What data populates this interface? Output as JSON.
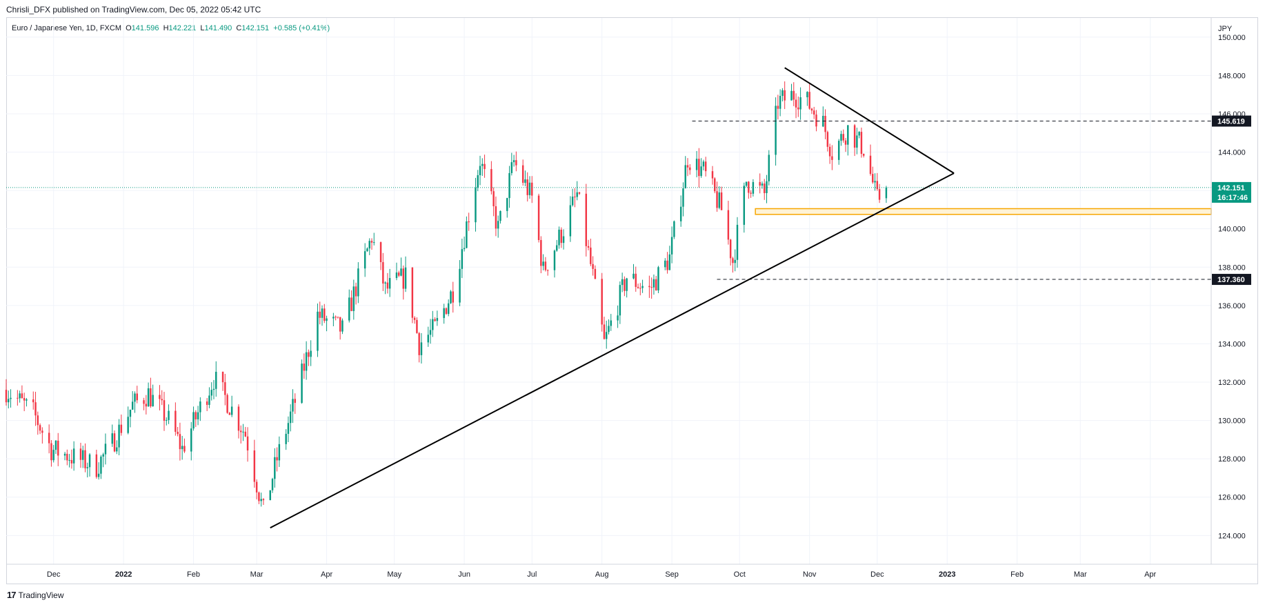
{
  "header": {
    "published": "Chrisli_DFX published on TradingView.com, Dec 05, 2022 05:42 UTC"
  },
  "symbol": {
    "name": "Euro / Japanese Yen, 1D, FXCM",
    "o_label": "O",
    "o": "141.596",
    "h_label": "H",
    "h": "142.221",
    "l_label": "L",
    "l": "141.490",
    "c_label": "C",
    "c": "142.151",
    "change": "+0.585 (+0.41%)"
  },
  "footer": {
    "brand": "TradingView",
    "logo": "17"
  },
  "colors": {
    "up": "#089981",
    "down": "#f23645",
    "accent_zone": "#f7a600",
    "last_price_line": "#089981"
  },
  "chart_data": {
    "type": "candlestick",
    "currency_label": "JPY",
    "ylim": [
      122.5,
      151.0
    ],
    "y_ticks": [
      124,
      126,
      128,
      130,
      132,
      134,
      136,
      138,
      140,
      142,
      144,
      146,
      148,
      150
    ],
    "y_tick_labels": [
      "124.000",
      "126.000",
      "128.000",
      "130.000",
      "132.000",
      "134.000",
      "136.000",
      "138.000",
      "140.000",
      "142.000",
      "144.000",
      "146.000",
      "148.000",
      "150.000"
    ],
    "x_range": [
      "2021-11-10",
      "2023-04-28"
    ],
    "x_ticks": [
      {
        "date": "2021-12-01",
        "label": "Dec",
        "bold": false
      },
      {
        "date": "2022-01-01",
        "label": "2022",
        "bold": true
      },
      {
        "date": "2022-02-01",
        "label": "Feb",
        "bold": false
      },
      {
        "date": "2022-03-01",
        "label": "Mar",
        "bold": false
      },
      {
        "date": "2022-04-01",
        "label": "Apr",
        "bold": false
      },
      {
        "date": "2022-05-01",
        "label": "May",
        "bold": false
      },
      {
        "date": "2022-06-01",
        "label": "Jun",
        "bold": false
      },
      {
        "date": "2022-07-01",
        "label": "Jul",
        "bold": false
      },
      {
        "date": "2022-08-01",
        "label": "Aug",
        "bold": false
      },
      {
        "date": "2022-09-01",
        "label": "Sep",
        "bold": false
      },
      {
        "date": "2022-10-01",
        "label": "Oct",
        "bold": false
      },
      {
        "date": "2022-11-01",
        "label": "Nov",
        "bold": false
      },
      {
        "date": "2022-12-01",
        "label": "Dec",
        "bold": false
      },
      {
        "date": "2023-01-01",
        "label": "2023",
        "bold": true
      },
      {
        "date": "2023-02-01",
        "label": "Feb",
        "bold": false
      },
      {
        "date": "2023-03-01",
        "label": "Mar",
        "bold": false
      },
      {
        "date": "2023-04-01",
        "label": "Apr",
        "bold": false
      }
    ],
    "price_path": [
      [
        "2021-11-10",
        131.6
      ],
      [
        "2021-11-22",
        130.4
      ],
      [
        "2021-11-30",
        128.5
      ],
      [
        "2021-12-07",
        128.2
      ],
      [
        "2021-12-20",
        127.6
      ],
      [
        "2021-12-27",
        128.8
      ],
      [
        "2022-01-05",
        130.8
      ],
      [
        "2022-01-12",
        131.4
      ],
      [
        "2022-01-21",
        130.0
      ],
      [
        "2022-01-27",
        128.5
      ],
      [
        "2022-02-03",
        130.4
      ],
      [
        "2022-02-10",
        132.2
      ],
      [
        "2022-02-17",
        130.8
      ],
      [
        "2022-02-24",
        129.3
      ],
      [
        "2022-03-04",
        125.2
      ],
      [
        "2022-03-10",
        128.0
      ],
      [
        "2022-03-18",
        131.0
      ],
      [
        "2022-03-28",
        135.5
      ],
      [
        "2022-04-08",
        134.7
      ],
      [
        "2022-04-21",
        139.6
      ],
      [
        "2022-04-27",
        136.8
      ],
      [
        "2022-05-06",
        137.5
      ],
      [
        "2022-05-12",
        134.0
      ],
      [
        "2022-05-19",
        134.8
      ],
      [
        "2022-05-27",
        136.8
      ],
      [
        "2022-06-08",
        143.6
      ],
      [
        "2022-06-16",
        140.0
      ],
      [
        "2022-06-23",
        143.5
      ],
      [
        "2022-07-01",
        141.6
      ],
      [
        "2022-07-06",
        137.8
      ],
      [
        "2022-07-15",
        140.0
      ],
      [
        "2022-07-21",
        141.8
      ],
      [
        "2022-07-28",
        137.5
      ],
      [
        "2022-08-02",
        134.0
      ],
      [
        "2022-08-12",
        137.5
      ],
      [
        "2022-08-22",
        136.8
      ],
      [
        "2022-08-31",
        138.5
      ],
      [
        "2022-09-08",
        143.7
      ],
      [
        "2022-09-15",
        143.0
      ],
      [
        "2022-09-23",
        141.0
      ],
      [
        "2022-09-28",
        138.3
      ],
      [
        "2022-10-04",
        142.5
      ],
      [
        "2022-10-12",
        141.8
      ],
      [
        "2022-10-18",
        146.6
      ],
      [
        "2022-10-25",
        147.0
      ],
      [
        "2022-10-31",
        146.6
      ],
      [
        "2022-11-07",
        145.5
      ],
      [
        "2022-11-11",
        144.0
      ],
      [
        "2022-11-18",
        145.2
      ],
      [
        "2022-11-25",
        144.2
      ],
      [
        "2022-12-01",
        141.5
      ],
      [
        "2022-12-05",
        142.15
      ]
    ],
    "horizontal_levels": [
      {
        "value": 145.619,
        "label": "145.619",
        "from": "2022-09-10",
        "style": "dashed"
      },
      {
        "value": 137.36,
        "label": "137.360",
        "from": "2022-09-21",
        "style": "dashed"
      }
    ],
    "last_price": {
      "value": 142.151,
      "label": "142.151",
      "countdown": "16:17:46"
    },
    "support_zone": {
      "from": "2022-10-08",
      "top": 141.05,
      "bottom": 140.75
    },
    "trendlines": [
      {
        "from": [
          "2022-03-07",
          124.4
        ],
        "to": [
          "2023-01-04",
          142.9
        ]
      },
      {
        "from": [
          "2022-10-21",
          148.4
        ],
        "to": [
          "2023-01-04",
          142.9
        ]
      }
    ]
  }
}
